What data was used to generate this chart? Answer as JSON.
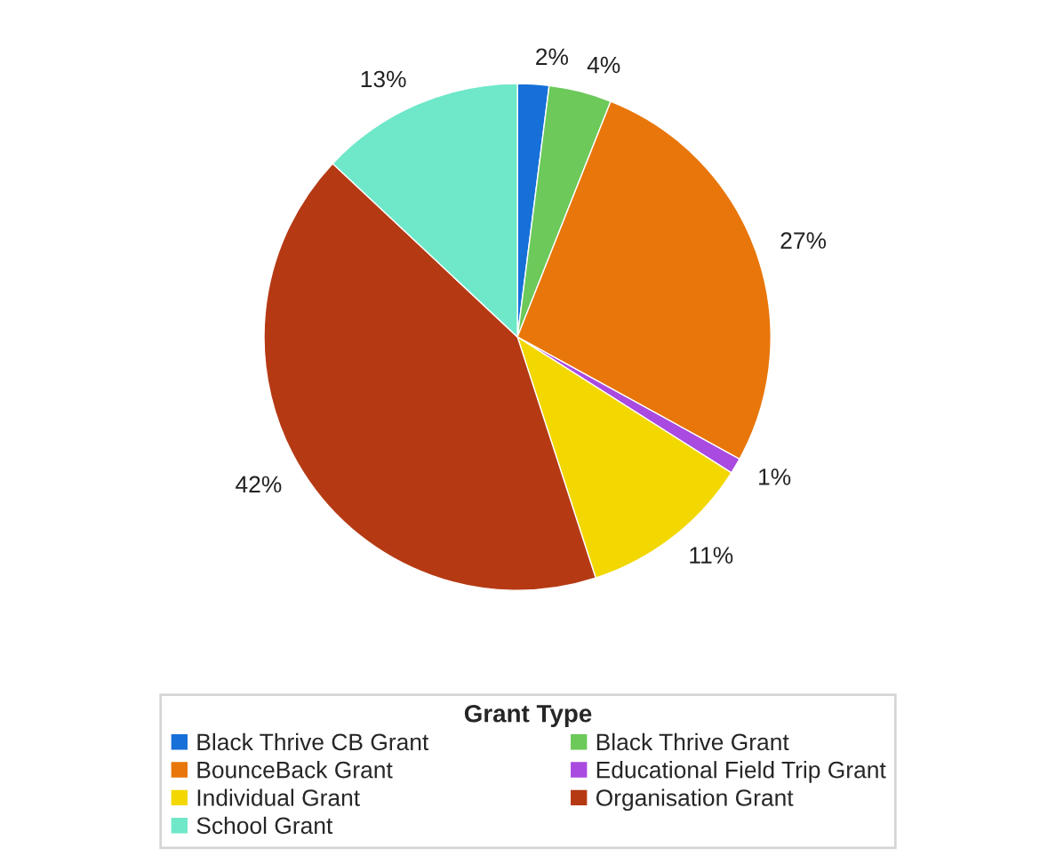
{
  "chart_data": {
    "type": "pie",
    "categories": [
      "Black Thrive CB Grant",
      "Black Thrive Grant",
      "BounceBack Grant",
      "Educational Field Trip Grant",
      "Individual Grant",
      "Organisation Grant",
      "School Grant"
    ],
    "values": [
      2,
      4,
      27,
      1,
      11,
      42,
      13
    ],
    "value_labels": [
      "2%",
      "4%",
      "27%",
      "1%",
      "11%",
      "42%",
      "13%"
    ],
    "colors": [
      "#1670d8",
      "#6cc95a",
      "#e8760a",
      "#a94ae0",
      "#f2d800",
      "#b53a14",
      "#6ee8c8"
    ],
    "legend_title": "Grant Type",
    "legend": "bottom"
  }
}
